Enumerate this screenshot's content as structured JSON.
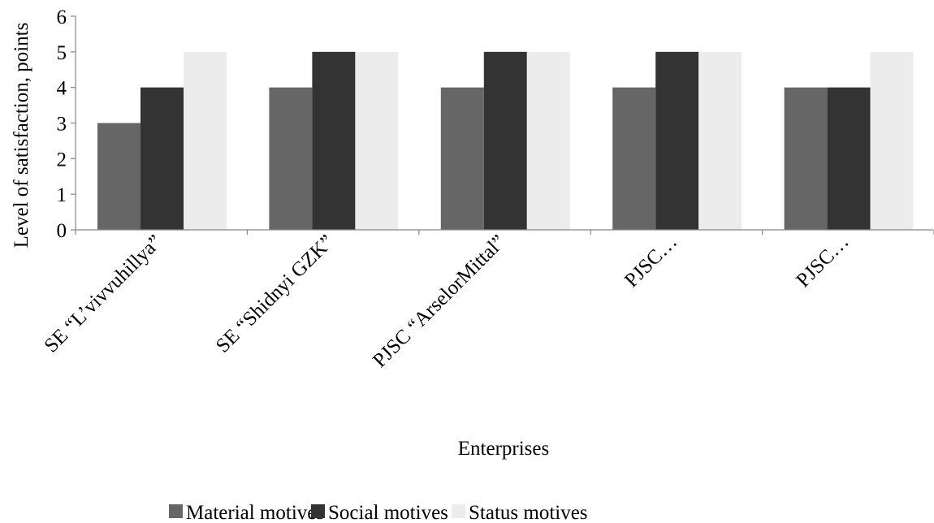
{
  "chart_data": {
    "type": "bar",
    "title": "",
    "xlabel": "Enterprises",
    "ylabel": "Level of satisfaction, points",
    "ylim": [
      0,
      6
    ],
    "yticks": [
      0,
      1,
      2,
      3,
      4,
      5,
      6
    ],
    "grid": false,
    "legend_position": "bottom",
    "categories": [
      "SE “L’vivvuhillya”",
      "SE “Shidnyi GZK”",
      "PJSC “ArselorMittal”",
      "PJSC…",
      "PJSC…"
    ],
    "series": [
      {
        "name": "Material motives",
        "color": "#666666",
        "values": [
          3,
          4,
          4,
          4,
          4
        ]
      },
      {
        "name": "Social motives",
        "color": "#333333",
        "values": [
          4,
          5,
          5,
          5,
          4
        ]
      },
      {
        "name": "Status motives",
        "color": "#ececec",
        "values": [
          5,
          5,
          5,
          5,
          5
        ]
      }
    ]
  }
}
